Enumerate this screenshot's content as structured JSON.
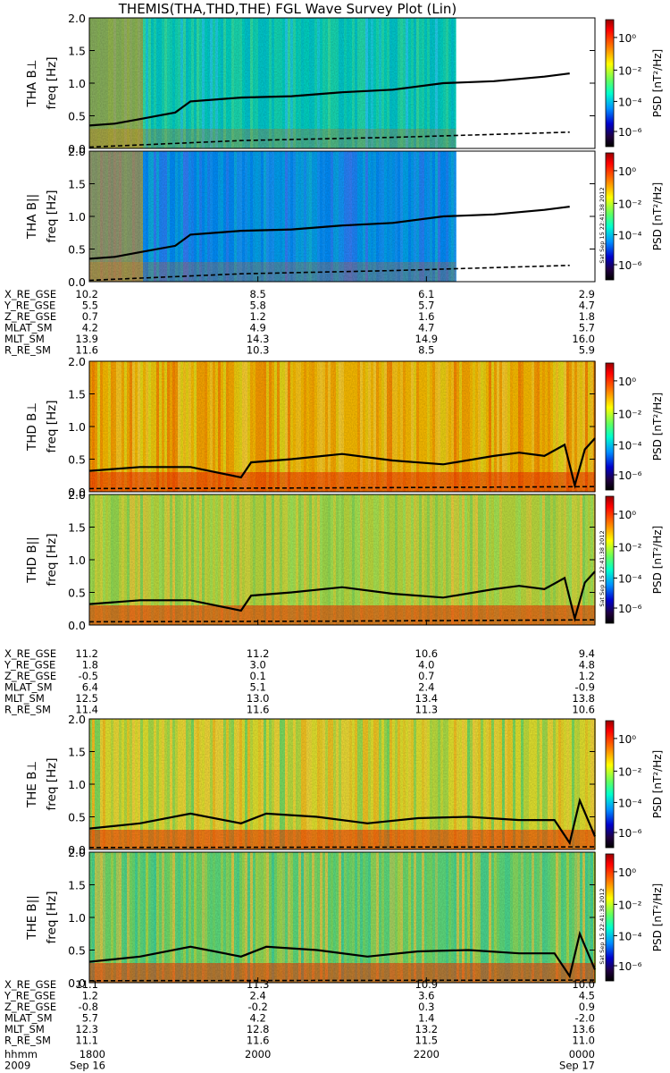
{
  "title": "THEMIS(THA,THD,THE) FGL Wave Survey Plot (Lin)",
  "stamp": "Sat Sep 15 22:41:38 2012",
  "colorbar": {
    "label": "PSD [nT²/Hz]",
    "ticks": [
      "10⁰",
      "10⁻²",
      "10⁻⁴",
      "10⁻⁶"
    ],
    "tick_values": [
      1,
      0.01,
      0.0001,
      1e-06
    ]
  },
  "freq_axis": {
    "label": "freq [Hz]",
    "ticks": [
      "0.0",
      "0.5",
      "1.0",
      "1.5",
      "2.0"
    ]
  },
  "probes": [
    {
      "id": "THA",
      "panels": [
        "THA B⊥",
        "THA B||"
      ],
      "data_end_fraction": 0.725,
      "ephemeris": [
        {
          "label": "X_RE_GSE",
          "values": [
            "10.2",
            "8.5",
            "6.1",
            "2.9"
          ]
        },
        {
          "label": "Y_RE_GSE",
          "values": [
            "5.5",
            "5.8",
            "5.7",
            "4.7"
          ]
        },
        {
          "label": "Z_RE_GSE",
          "values": [
            "0.7",
            "1.2",
            "1.6",
            "1.8"
          ]
        },
        {
          "label": "MLAT_SM",
          "values": [
            "4.2",
            "4.9",
            "4.7",
            "5.7"
          ]
        },
        {
          "label": "MLT_SM",
          "values": [
            "13.9",
            "14.3",
            "14.9",
            "16.0"
          ]
        },
        {
          "label": "R_RE_SM",
          "values": [
            "11.6",
            "10.3",
            "8.5",
            "5.9"
          ]
        }
      ]
    },
    {
      "id": "THD",
      "panels": [
        "THD B⊥",
        "THD B||"
      ],
      "data_end_fraction": 1.0,
      "ephemeris": [
        {
          "label": "X_RE_GSE",
          "values": [
            "11.2",
            "11.2",
            "10.6",
            "9.4"
          ]
        },
        {
          "label": "Y_RE_GSE",
          "values": [
            "1.8",
            "3.0",
            "4.0",
            "4.8"
          ]
        },
        {
          "label": "Z_RE_GSE",
          "values": [
            "-0.5",
            "0.1",
            "0.7",
            "1.2"
          ]
        },
        {
          "label": "MLAT_SM",
          "values": [
            "6.4",
            "5.1",
            "2.4",
            "-0.9"
          ]
        },
        {
          "label": "MLT_SM",
          "values": [
            "12.5",
            "13.0",
            "13.4",
            "13.8"
          ]
        },
        {
          "label": "R_RE_SM",
          "values": [
            "11.4",
            "11.6",
            "11.3",
            "10.6"
          ]
        }
      ]
    },
    {
      "id": "THE",
      "panels": [
        "THE B⊥",
        "THE B||"
      ],
      "data_end_fraction": 1.0,
      "ephemeris": [
        {
          "label": "X_RE_GSE",
          "values": [
            "11.1",
            "11.3",
            "10.9",
            "10.0"
          ]
        },
        {
          "label": "Y_RE_GSE",
          "values": [
            "1.2",
            "2.4",
            "3.6",
            "4.5"
          ]
        },
        {
          "label": "Z_RE_GSE",
          "values": [
            "-0.8",
            "-0.2",
            "0.3",
            "0.9"
          ]
        },
        {
          "label": "MLAT_SM",
          "values": [
            "5.7",
            "4.2",
            "1.4",
            "-2.0"
          ]
        },
        {
          "label": "MLT_SM",
          "values": [
            "12.3",
            "12.8",
            "13.2",
            "13.6"
          ]
        },
        {
          "label": "R_RE_SM",
          "values": [
            "11.1",
            "11.6",
            "11.5",
            "11.0"
          ]
        }
      ]
    }
  ],
  "time_axis": {
    "rows": [
      {
        "label": "hhmm",
        "values": [
          "1800",
          "2000",
          "2200",
          "0000"
        ]
      },
      {
        "label": "2009",
        "values": [
          "Sep 16",
          "",
          "",
          "Sep 17"
        ]
      }
    ]
  },
  "chart_data": {
    "type": "heatmap",
    "title": "THEMIS(THA,THD,THE) FGL Wave Survey Plot (Lin)",
    "xlabel": "hhmm",
    "x_ticks": [
      "1800",
      "2000",
      "2200",
      "0000"
    ],
    "ylabel": "freq [Hz]",
    "ylim": [
      0,
      2.0
    ],
    "y_ticks": [
      0.0,
      0.5,
      1.0,
      1.5,
      2.0
    ],
    "color_scale": "log",
    "color_label": "PSD [nT²/Hz]",
    "color_ticks": [
      1,
      0.01,
      0.0001,
      1e-06
    ],
    "overlay_lines": [
      "solid black (upper frequency curve)",
      "dashed black (lower frequency curve)"
    ],
    "panels": [
      {
        "name": "THA B⊥",
        "solid_line": [
          [
            0.0,
            0.35
          ],
          [
            0.05,
            0.38
          ],
          [
            0.1,
            0.45
          ],
          [
            0.17,
            0.55
          ],
          [
            0.2,
            0.72
          ],
          [
            0.3,
            0.78
          ],
          [
            0.4,
            0.8
          ],
          [
            0.5,
            0.86
          ],
          [
            0.6,
            0.9
          ],
          [
            0.7,
            1.0
          ],
          [
            0.8,
            1.03
          ],
          [
            0.9,
            1.1
          ],
          [
            0.95,
            1.15
          ]
        ],
        "dashed_line": [
          [
            0.0,
            0.02
          ],
          [
            0.3,
            0.12
          ],
          [
            0.6,
            0.17
          ],
          [
            0.95,
            0.25
          ]
        ]
      },
      {
        "name": "THA B||",
        "solid_line": [
          [
            0.0,
            0.35
          ],
          [
            0.05,
            0.38
          ],
          [
            0.1,
            0.45
          ],
          [
            0.17,
            0.55
          ],
          [
            0.2,
            0.72
          ],
          [
            0.3,
            0.78
          ],
          [
            0.4,
            0.8
          ],
          [
            0.5,
            0.86
          ],
          [
            0.6,
            0.9
          ],
          [
            0.7,
            1.0
          ],
          [
            0.8,
            1.03
          ],
          [
            0.9,
            1.1
          ],
          [
            0.95,
            1.15
          ]
        ],
        "dashed_line": [
          [
            0.0,
            0.02
          ],
          [
            0.3,
            0.12
          ],
          [
            0.6,
            0.17
          ],
          [
            0.95,
            0.25
          ]
        ]
      },
      {
        "name": "THD B⊥",
        "solid_line": [
          [
            0.0,
            0.32
          ],
          [
            0.1,
            0.38
          ],
          [
            0.2,
            0.38
          ],
          [
            0.3,
            0.22
          ],
          [
            0.32,
            0.45
          ],
          [
            0.4,
            0.5
          ],
          [
            0.5,
            0.58
          ],
          [
            0.6,
            0.48
          ],
          [
            0.7,
            0.42
          ],
          [
            0.8,
            0.55
          ],
          [
            0.85,
            0.6
          ],
          [
            0.9,
            0.55
          ],
          [
            0.94,
            0.72
          ],
          [
            0.96,
            0.1
          ],
          [
            0.98,
            0.65
          ],
          [
            1.0,
            0.82
          ]
        ],
        "dashed_line": [
          [
            0.0,
            0.05
          ],
          [
            0.5,
            0.06
          ],
          [
            1.0,
            0.08
          ]
        ]
      },
      {
        "name": "THD B||",
        "solid_line": [
          [
            0.0,
            0.32
          ],
          [
            0.1,
            0.38
          ],
          [
            0.2,
            0.38
          ],
          [
            0.3,
            0.22
          ],
          [
            0.32,
            0.45
          ],
          [
            0.4,
            0.5
          ],
          [
            0.5,
            0.58
          ],
          [
            0.6,
            0.48
          ],
          [
            0.7,
            0.42
          ],
          [
            0.8,
            0.55
          ],
          [
            0.85,
            0.6
          ],
          [
            0.9,
            0.55
          ],
          [
            0.94,
            0.72
          ],
          [
            0.96,
            0.1
          ],
          [
            0.98,
            0.65
          ],
          [
            1.0,
            0.82
          ]
        ],
        "dashed_line": [
          [
            0.0,
            0.05
          ],
          [
            0.5,
            0.06
          ],
          [
            1.0,
            0.08
          ]
        ]
      },
      {
        "name": "THE B⊥",
        "solid_line": [
          [
            0.0,
            0.32
          ],
          [
            0.1,
            0.4
          ],
          [
            0.2,
            0.55
          ],
          [
            0.3,
            0.4
          ],
          [
            0.35,
            0.55
          ],
          [
            0.45,
            0.5
          ],
          [
            0.55,
            0.4
          ],
          [
            0.65,
            0.48
          ],
          [
            0.75,
            0.5
          ],
          [
            0.85,
            0.45
          ],
          [
            0.92,
            0.45
          ],
          [
            0.95,
            0.1
          ],
          [
            0.97,
            0.75
          ],
          [
            1.0,
            0.2
          ]
        ],
        "dashed_line": [
          [
            0.0,
            0.03
          ],
          [
            1.0,
            0.04
          ]
        ]
      },
      {
        "name": "THE B||",
        "solid_line": [
          [
            0.0,
            0.32
          ],
          [
            0.1,
            0.4
          ],
          [
            0.2,
            0.55
          ],
          [
            0.3,
            0.4
          ],
          [
            0.35,
            0.55
          ],
          [
            0.45,
            0.5
          ],
          [
            0.55,
            0.4
          ],
          [
            0.65,
            0.48
          ],
          [
            0.75,
            0.5
          ],
          [
            0.85,
            0.45
          ],
          [
            0.92,
            0.45
          ],
          [
            0.95,
            0.1
          ],
          [
            0.97,
            0.75
          ],
          [
            1.0,
            0.2
          ]
        ],
        "dashed_line": [
          [
            0.0,
            0.03
          ],
          [
            1.0,
            0.04
          ]
        ]
      }
    ]
  },
  "colors": {
    "line": "#000000",
    "gradient": [
      "#ff0000",
      "#ff8000",
      "#ffff00",
      "#80ff60",
      "#00ffcc",
      "#0080ff",
      "#0000cc",
      "#000000"
    ]
  }
}
